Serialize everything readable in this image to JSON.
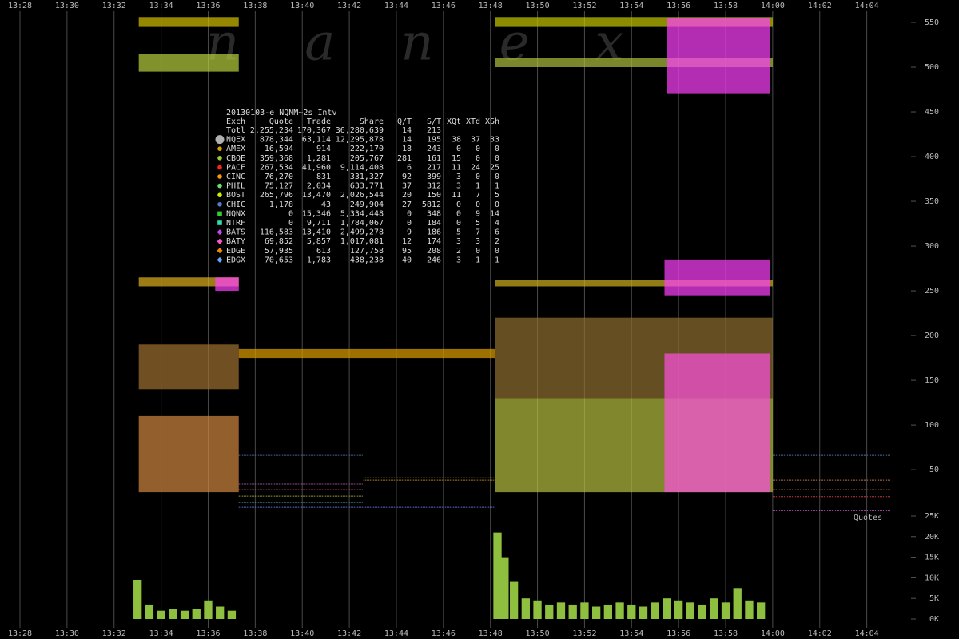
{
  "watermark": "nanex",
  "stats_table": {
    "title": "20130103-e_NQNM~2s Intv",
    "columns": [
      "Exch",
      "Quote",
      "Trade",
      "Share",
      "Q/T",
      "S/T",
      "XQt",
      "XTd",
      "XSh"
    ],
    "rows": [
      {
        "exch": "Totl",
        "cells": [
          "2,255,234",
          "170,367",
          "36,280,639",
          "14",
          "213"
        ]
      },
      {
        "exch": "NQEX",
        "color": "#b0b0b0",
        "marker": "big-circle",
        "cells": [
          "878,344",
          "63,114",
          "12,295,878",
          "14",
          "195",
          "38",
          "37",
          "33"
        ]
      },
      {
        "exch": "AMEX",
        "color": "#d8a000",
        "marker": "circle",
        "cells": [
          "16,594",
          "914",
          "222,170",
          "18",
          "243",
          "0",
          "0",
          "0"
        ]
      },
      {
        "exch": "CBOE",
        "color": "#9acd32",
        "marker": "circle",
        "cells": [
          "359,368",
          "1,281",
          "205,767",
          "281",
          "161",
          "15",
          "0",
          "0"
        ]
      },
      {
        "exch": "PACF",
        "color": "#ff2020",
        "marker": "circle",
        "cells": [
          "267,534",
          "41,960",
          "9,114,408",
          "6",
          "217",
          "11",
          "24",
          "25"
        ]
      },
      {
        "exch": "CINC",
        "color": "#ff9900",
        "marker": "circle",
        "cells": [
          "76,270",
          "831",
          "331,327",
          "92",
          "399",
          "3",
          "0",
          "0"
        ]
      },
      {
        "exch": "PHIL",
        "color": "#66dd66",
        "marker": "circle",
        "cells": [
          "75,127",
          "2,034",
          "633,771",
          "37",
          "312",
          "3",
          "1",
          "1"
        ]
      },
      {
        "exch": "BOST",
        "color": "#ccee00",
        "marker": "circle",
        "cells": [
          "265,796",
          "13,470",
          "2,026,544",
          "20",
          "150",
          "11",
          "7",
          "5"
        ]
      },
      {
        "exch": "CHIC",
        "color": "#4f7fcf",
        "marker": "circle",
        "cells": [
          "1,178",
          "43",
          "249,904",
          "27",
          "5812",
          "0",
          "0",
          "0"
        ]
      },
      {
        "exch": "NQNX",
        "color": "#33cc33",
        "marker": "square",
        "cells": [
          "0",
          "15,346",
          "5,334,448",
          "0",
          "348",
          "0",
          "9",
          "14"
        ]
      },
      {
        "exch": "NTRF",
        "color": "#33ddaa",
        "marker": "square",
        "cells": [
          "0",
          "9,711",
          "1,784,067",
          "0",
          "184",
          "0",
          "5",
          "4"
        ]
      },
      {
        "exch": "BATS",
        "color": "#cc44ee",
        "marker": "diamond",
        "cells": [
          "116,583",
          "13,410",
          "2,499,278",
          "9",
          "186",
          "5",
          "7",
          "6"
        ]
      },
      {
        "exch": "BATY",
        "color": "#ff55cc",
        "marker": "diamond",
        "cells": [
          "69,852",
          "5,857",
          "1,017,081",
          "12",
          "174",
          "3",
          "3",
          "2"
        ]
      },
      {
        "exch": "EDGE",
        "color": "#ee8800",
        "marker": "diamond",
        "cells": [
          "57,935",
          "613",
          "127,758",
          "95",
          "208",
          "2",
          "0",
          "0"
        ]
      },
      {
        "exch": "EDGX",
        "color": "#66aaff",
        "marker": "diamond",
        "cells": [
          "70,653",
          "1,783",
          "438,238",
          "40",
          "246",
          "3",
          "1",
          "1"
        ]
      }
    ]
  },
  "chart_data": [
    {
      "type": "range",
      "xlim": [
        807.15,
        847.92
      ],
      "xticks": [
        {
          "value": 808,
          "label": "13:28"
        },
        {
          "value": 810,
          "label": "13:30"
        },
        {
          "value": 812,
          "label": "13:32"
        },
        {
          "value": 814,
          "label": "13:34"
        },
        {
          "value": 816,
          "label": "13:36"
        },
        {
          "value": 818,
          "label": "13:38"
        },
        {
          "value": 820,
          "label": "13:40"
        },
        {
          "value": 822,
          "label": "13:42"
        },
        {
          "value": 824,
          "label": "13:44"
        },
        {
          "value": 826,
          "label": "13:46"
        },
        {
          "value": 828,
          "label": "13:48"
        },
        {
          "value": 830,
          "label": "13:50"
        },
        {
          "value": 832,
          "label": "13:52"
        },
        {
          "value": 834,
          "label": "13:54"
        },
        {
          "value": 836,
          "label": "13:56"
        },
        {
          "value": 838,
          "label": "13:58"
        },
        {
          "value": 840,
          "label": "14:00"
        },
        {
          "value": 842,
          "label": "14:02"
        },
        {
          "value": 844,
          "label": "14:04"
        }
      ],
      "ylim": [
        1,
        575
      ],
      "yticks": [
        50,
        100,
        150,
        200,
        250,
        300,
        350,
        400,
        450,
        500,
        550
      ],
      "regions": [
        {
          "x": [
            813.05,
            817.3
          ],
          "y": [
            545,
            556
          ],
          "color": "#d4c000"
        },
        {
          "x": [
            813.05,
            817.3
          ],
          "y": [
            495,
            515
          ],
          "color": "#b8d040"
        },
        {
          "x": [
            813.05,
            817.3
          ],
          "y": [
            255,
            265
          ],
          "color": "#e0b020"
        },
        {
          "x": [
            816.3,
            817.3
          ],
          "y": [
            250,
            265
          ],
          "color": "#ff40ff"
        },
        {
          "x": [
            813.05,
            817.3
          ],
          "y": [
            140,
            190
          ],
          "color": "#a07030"
        },
        {
          "x": [
            813.05,
            817.3
          ],
          "y": [
            25,
            110
          ],
          "color": "#d08840"
        },
        {
          "x": [
            817.3,
            828.2
          ],
          "y": [
            175,
            185
          ],
          "color": "#e0a000"
        },
        {
          "x": [
            828.2,
            840
          ],
          "y": [
            545,
            556
          ],
          "color": "#c8c800"
        },
        {
          "x": [
            828.2,
            840
          ],
          "y": [
            500,
            510
          ],
          "color": "#b0c040"
        },
        {
          "x": [
            835.5,
            839.9
          ],
          "y": [
            470,
            555
          ],
          "color": "#ff40ff"
        },
        {
          "x": [
            828.2,
            840
          ],
          "y": [
            255,
            262
          ],
          "color": "#d0b020"
        },
        {
          "x": [
            835.4,
            839.9
          ],
          "y": [
            245,
            285
          ],
          "color": "#ff40ff"
        },
        {
          "x": [
            828.2,
            840
          ],
          "y": [
            130,
            220
          ],
          "color": "#907030"
        },
        {
          "x": [
            828.2,
            840
          ],
          "y": [
            25,
            130
          ],
          "color": "#b8c040"
        },
        {
          "x": [
            835.4,
            839.9
          ],
          "y": [
            25,
            180
          ],
          "color": "#ff50e0"
        }
      ],
      "segments": [
        {
          "x": [
            817.3,
            822.6
          ],
          "y": 66,
          "color": "#5080c0"
        },
        {
          "x": [
            822.6,
            828.2
          ],
          "y": 63,
          "color": "#5080c0"
        },
        {
          "x": [
            840,
            845
          ],
          "y": 66,
          "color": "#5080c0"
        },
        {
          "x": [
            817.3,
            822.6
          ],
          "y": 34,
          "color": "#c060c0"
        },
        {
          "x": [
            817.3,
            822.6
          ],
          "y": 27.7,
          "color": "#ff60a0"
        },
        {
          "x": [
            817.3,
            822.6
          ],
          "y": 20.5,
          "color": "#c0c040"
        },
        {
          "x": [
            817.3,
            822.6
          ],
          "y": 13.4,
          "color": "#40c0c0"
        },
        {
          "x": [
            817.3,
            828.2
          ],
          "y": 8,
          "color": "#8080ff"
        },
        {
          "x": [
            822.6,
            828.2
          ],
          "y": 41,
          "color": "#80c040"
        },
        {
          "x": [
            822.6,
            828.2
          ],
          "y": 38.4,
          "color": "#e0a020"
        },
        {
          "x": [
            840,
            845
          ],
          "y": 38.4,
          "color": "#d08060"
        },
        {
          "x": [
            840,
            845
          ],
          "y": 27.7,
          "color": "#e08020"
        },
        {
          "x": [
            840,
            845
          ],
          "y": 20,
          "color": "#e04040"
        },
        {
          "x": [
            840,
            845
          ],
          "y": 4.5,
          "color": "#ff80ff"
        }
      ]
    },
    {
      "type": "bar",
      "label": "Quotes",
      "xlim": [
        807.15,
        847.92
      ],
      "xticks": [
        {
          "value": 808,
          "label": "13:28"
        },
        {
          "value": 810,
          "label": "13:30"
        },
        {
          "value": 812,
          "label": "13:32"
        },
        {
          "value": 814,
          "label": "13:34"
        },
        {
          "value": 816,
          "label": "13:36"
        },
        {
          "value": 818,
          "label": "13:38"
        },
        {
          "value": 820,
          "label": "13:40"
        },
        {
          "value": 822,
          "label": "13:42"
        },
        {
          "value": 824,
          "label": "13:44"
        },
        {
          "value": 826,
          "label": "13:46"
        },
        {
          "value": 828,
          "label": "13:48"
        },
        {
          "value": 830,
          "label": "13:50"
        },
        {
          "value": 832,
          "label": "13:52"
        },
        {
          "value": 834,
          "label": "13:54"
        },
        {
          "value": 836,
          "label": "13:56"
        },
        {
          "value": 838,
          "label": "13:58"
        },
        {
          "value": 840,
          "label": "14:00"
        },
        {
          "value": 842,
          "label": "14:02"
        },
        {
          "value": 844,
          "label": "14:04"
        }
      ],
      "ylim": [
        0,
        25000
      ],
      "yticks": [
        {
          "value": 0,
          "label": "0K"
        },
        {
          "value": 5000,
          "label": "5K"
        },
        {
          "value": 10000,
          "label": "10K"
        },
        {
          "value": 15000,
          "label": "15K"
        },
        {
          "value": 20000,
          "label": "20K"
        },
        {
          "value": 25000,
          "label": "25K"
        }
      ],
      "color": "#8fbf3f",
      "x": [
        813.0,
        813.5,
        814.0,
        814.5,
        815.0,
        815.5,
        816.0,
        816.5,
        817.0,
        828.3,
        828.6,
        829.0,
        829.5,
        830.0,
        830.5,
        831.0,
        831.5,
        832.0,
        832.5,
        833.0,
        833.5,
        834.0,
        834.5,
        835.0,
        835.5,
        836.0,
        836.5,
        837.0,
        837.5,
        838.0,
        838.5,
        839.0,
        839.5
      ],
      "values": [
        9500,
        3500,
        2000,
        2500,
        2000,
        2500,
        4500,
        3000,
        2000,
        21000,
        15000,
        9000,
        5000,
        4500,
        3500,
        4000,
        3500,
        4000,
        3000,
        3500,
        4000,
        3500,
        3000,
        4000,
        5000,
        4500,
        4000,
        3500,
        5000,
        4000,
        7500,
        4500,
        4000
      ]
    }
  ]
}
